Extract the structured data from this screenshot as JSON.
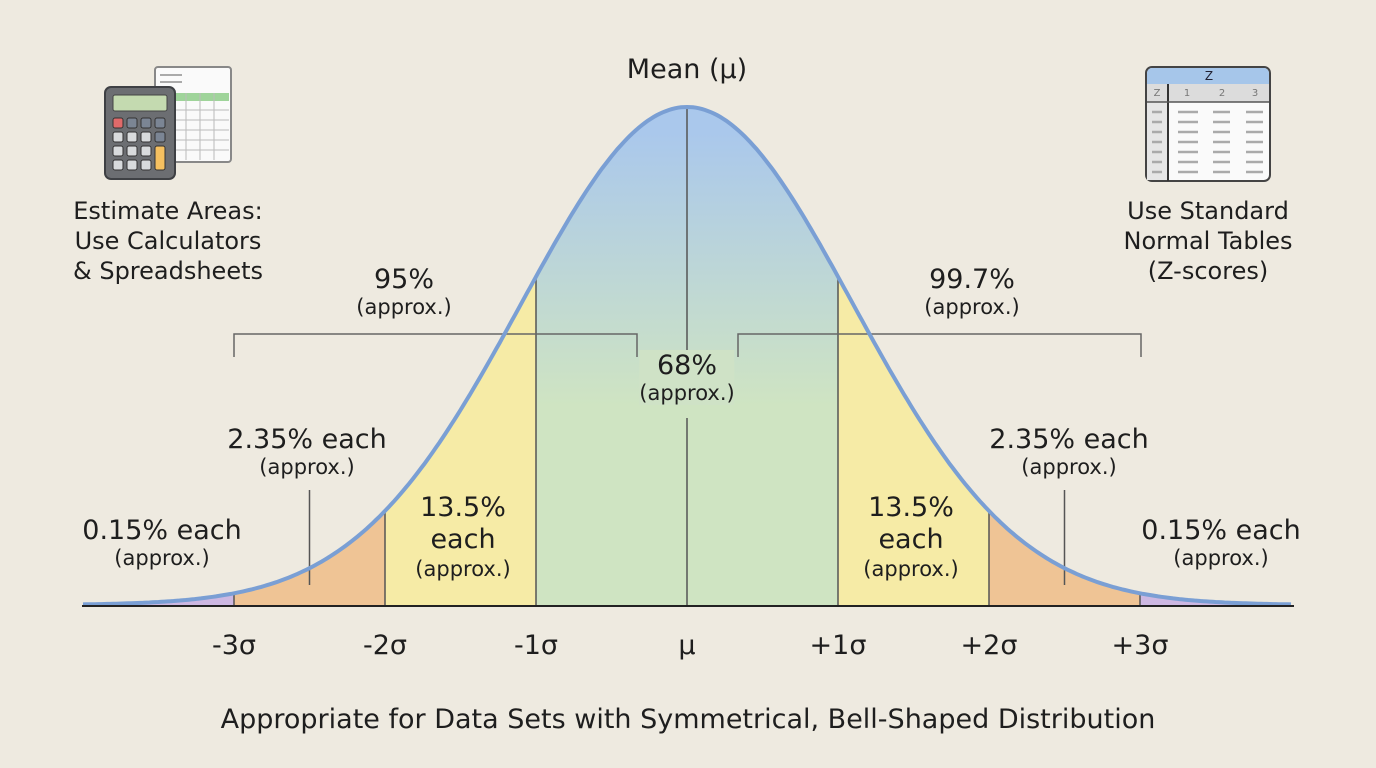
{
  "mean_label": "Mean (μ)",
  "left_note": {
    "icon": "calculator-spreadsheet-icon",
    "lines": [
      "Estimate Areas:",
      "Use Calculators",
      "& Spreadsheets"
    ]
  },
  "right_note": {
    "icon": "z-table-icon",
    "lines": [
      "Use Standard",
      "Normal Tables",
      "(Z-scores)"
    ],
    "table_header": "Z",
    "table_columns": [
      "Z",
      "1",
      "2",
      "3"
    ]
  },
  "annotations": {
    "p68": {
      "value": "68%",
      "note": "(approx.)"
    },
    "p95": {
      "value": "95%",
      "note": "(approx.)"
    },
    "p997": {
      "value": "99.7%",
      "note": "(approx.)"
    },
    "p135_left": {
      "lines": [
        "13.5%",
        "each"
      ],
      "note": "(approx.)"
    },
    "p135_right": {
      "lines": [
        "13.5%",
        "each"
      ],
      "note": "(approx.)"
    },
    "p235_left": {
      "value": "2.35% each",
      "note": "(approx.)"
    },
    "p235_right": {
      "value": "2.35% each",
      "note": "(approx.)"
    },
    "p015_left": {
      "value": "0.15% each",
      "note": "(approx.)"
    },
    "p015_right": {
      "value": "0.15% each",
      "note": "(approx.)"
    }
  },
  "axis_ticks": [
    "-3σ",
    "-2σ",
    "-1σ",
    "μ",
    "+1σ",
    "+2σ",
    "+3σ"
  ],
  "caption": "Appropriate for Data Sets with Symmetrical, Bell-Shaped Distribution",
  "colors": {
    "background": "#eeeae0",
    "curve": "#7a9fd4",
    "center_top": "#aac8ec",
    "center": "#cfe4c2",
    "band1": "#f6eba6",
    "band2": "#efc495",
    "tail": "#cdb8e2"
  }
}
